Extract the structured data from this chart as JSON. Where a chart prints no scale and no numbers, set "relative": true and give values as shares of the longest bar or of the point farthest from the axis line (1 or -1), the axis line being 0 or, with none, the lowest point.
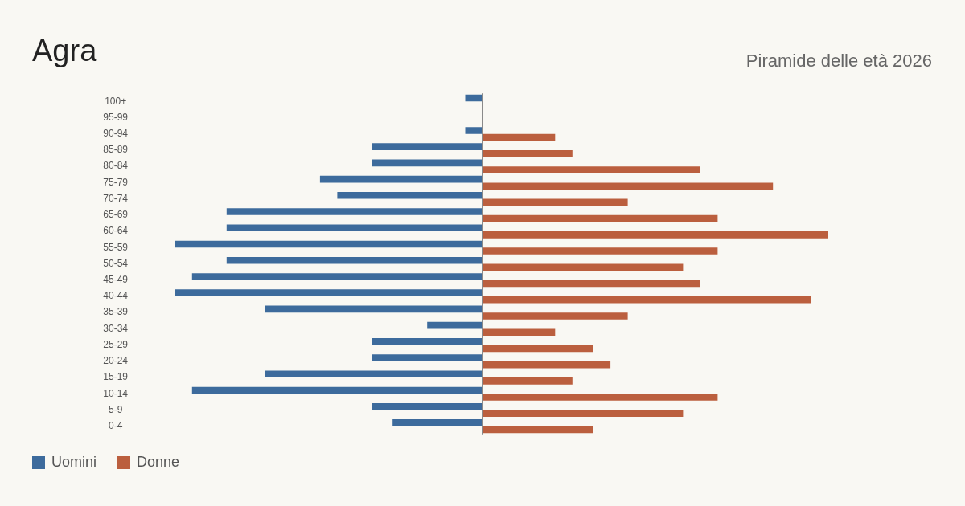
{
  "chart_data": {
    "type": "bar",
    "orientation": "horizontal",
    "relative": true,
    "title": "Agra",
    "subtitle": "Piramide delle età 2026",
    "legend": "bottom left",
    "categories": [
      "100+",
      "95-99",
      "90-94",
      "85-89",
      "80-84",
      "75-79",
      "70-74",
      "65-69",
      "60-64",
      "55-59",
      "50-54",
      "45-49",
      "40-44",
      "35-39",
      "30-34",
      "25-29",
      "20-24",
      "15-19",
      "10-14",
      "5-9",
      "0-4"
    ],
    "series": [
      {
        "name": "Uomini",
        "color": "#3d6b9c",
        "values": [
          -0.05,
          0,
          -0.05,
          -0.32,
          -0.32,
          -0.47,
          -0.42,
          -0.74,
          -0.74,
          -0.89,
          -0.74,
          -0.84,
          -0.89,
          -0.63,
          -0.16,
          -0.32,
          -0.32,
          -0.63,
          -0.84,
          -0.32,
          -0.26
        ]
      },
      {
        "name": "Donne",
        "color": "#bb5f3e",
        "values": [
          0,
          0,
          0.21,
          0.26,
          0.63,
          0.84,
          0.42,
          0.68,
          1,
          0.68,
          0.58,
          0.63,
          0.95,
          0.42,
          0.21,
          0.32,
          0.37,
          0.26,
          0.68,
          0.58,
          0.32
        ]
      }
    ]
  }
}
